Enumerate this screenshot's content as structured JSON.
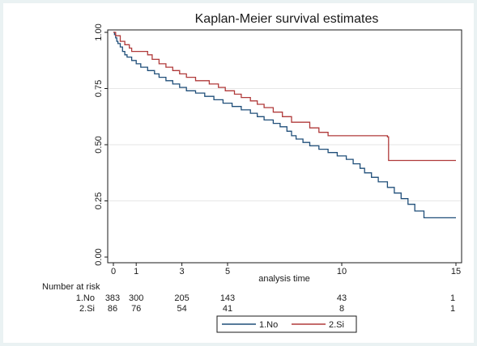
{
  "chart_data": {
    "type": "line",
    "title": "Kaplan-Meier survival estimates",
    "xlabel": "analysis time",
    "ylabel": "",
    "xlim": [
      0,
      15
    ],
    "ylim": [
      0,
      1
    ],
    "x_ticks": [
      {
        "value": 0,
        "label": "0"
      },
      {
        "value": 1,
        "label": "1"
      },
      {
        "value": 3,
        "label": "3"
      },
      {
        "value": 5,
        "label": "5"
      },
      {
        "value": 10,
        "label": "10"
      },
      {
        "value": 15,
        "label": "15"
      }
    ],
    "y_ticks": [
      {
        "value": 0,
        "label": "0.00"
      },
      {
        "value": 0.25,
        "label": "0.25"
      },
      {
        "value": 0.5,
        "label": "0.50"
      },
      {
        "value": 0.75,
        "label": "0.75"
      },
      {
        "value": 1,
        "label": "1.00"
      }
    ],
    "grid": "horizontal",
    "legend_position": "bottom",
    "series": [
      {
        "name": "1.No",
        "color": "#1f4e79",
        "step": true,
        "points": [
          [
            0,
            1.0
          ],
          [
            0.05,
            0.99
          ],
          [
            0.1,
            0.975
          ],
          [
            0.15,
            0.96
          ],
          [
            0.2,
            0.95
          ],
          [
            0.3,
            0.935
          ],
          [
            0.4,
            0.915
          ],
          [
            0.5,
            0.9
          ],
          [
            0.6,
            0.89
          ],
          [
            0.8,
            0.875
          ],
          [
            1.0,
            0.86
          ],
          [
            1.2,
            0.845
          ],
          [
            1.5,
            0.83
          ],
          [
            1.8,
            0.815
          ],
          [
            2.0,
            0.8
          ],
          [
            2.3,
            0.785
          ],
          [
            2.6,
            0.77
          ],
          [
            2.9,
            0.755
          ],
          [
            3.2,
            0.74
          ],
          [
            3.6,
            0.73
          ],
          [
            4.0,
            0.715
          ],
          [
            4.4,
            0.7
          ],
          [
            4.8,
            0.685
          ],
          [
            5.2,
            0.67
          ],
          [
            5.6,
            0.655
          ],
          [
            6.0,
            0.64
          ],
          [
            6.3,
            0.625
          ],
          [
            6.6,
            0.61
          ],
          [
            7.0,
            0.595
          ],
          [
            7.3,
            0.58
          ],
          [
            7.6,
            0.56
          ],
          [
            7.8,
            0.54
          ],
          [
            8.0,
            0.525
          ],
          [
            8.3,
            0.51
          ],
          [
            8.6,
            0.495
          ],
          [
            9.0,
            0.48
          ],
          [
            9.4,
            0.465
          ],
          [
            9.8,
            0.45
          ],
          [
            10.2,
            0.435
          ],
          [
            10.5,
            0.415
          ],
          [
            10.8,
            0.395
          ],
          [
            11.0,
            0.375
          ],
          [
            11.3,
            0.355
          ],
          [
            11.6,
            0.335
          ],
          [
            12.0,
            0.31
          ],
          [
            12.3,
            0.285
          ],
          [
            12.6,
            0.26
          ],
          [
            12.9,
            0.235
          ],
          [
            13.2,
            0.205
          ],
          [
            13.6,
            0.175
          ],
          [
            15.0,
            0.175
          ]
        ]
      },
      {
        "name": "2.Si",
        "color": "#b03a3a",
        "step": true,
        "points": [
          [
            0,
            1.0
          ],
          [
            0.1,
            0.985
          ],
          [
            0.3,
            0.96
          ],
          [
            0.5,
            0.945
          ],
          [
            0.7,
            0.93
          ],
          [
            0.8,
            0.915
          ],
          [
            1.5,
            0.9
          ],
          [
            1.7,
            0.88
          ],
          [
            2.0,
            0.86
          ],
          [
            2.3,
            0.845
          ],
          [
            2.6,
            0.83
          ],
          [
            2.9,
            0.815
          ],
          [
            3.2,
            0.8
          ],
          [
            3.6,
            0.785
          ],
          [
            4.2,
            0.77
          ],
          [
            4.6,
            0.755
          ],
          [
            4.9,
            0.74
          ],
          [
            5.3,
            0.725
          ],
          [
            5.6,
            0.71
          ],
          [
            6.0,
            0.695
          ],
          [
            6.3,
            0.68
          ],
          [
            6.6,
            0.665
          ],
          [
            7.0,
            0.645
          ],
          [
            7.4,
            0.625
          ],
          [
            7.8,
            0.6
          ],
          [
            8.6,
            0.575
          ],
          [
            9.0,
            0.555
          ],
          [
            9.4,
            0.54
          ],
          [
            12.0,
            0.535
          ],
          [
            12.05,
            0.43
          ],
          [
            15.0,
            0.43
          ]
        ]
      }
    ],
    "risk_table": {
      "heading": "Number at risk",
      "rows": [
        {
          "label": "1.No",
          "counts": [
            {
              "x": 0,
              "n": "383"
            },
            {
              "x": 1,
              "n": "300"
            },
            {
              "x": 3,
              "n": "205"
            },
            {
              "x": 5,
              "n": "143"
            },
            {
              "x": 10,
              "n": "43"
            },
            {
              "x": 15,
              "n": "1"
            }
          ]
        },
        {
          "label": "2.Si",
          "counts": [
            {
              "x": 0,
              "n": "86"
            },
            {
              "x": 1,
              "n": "76"
            },
            {
              "x": 3,
              "n": "54"
            },
            {
              "x": 5,
              "n": "41"
            },
            {
              "x": 10,
              "n": "8"
            },
            {
              "x": 15,
              "n": "1"
            }
          ]
        }
      ]
    }
  }
}
